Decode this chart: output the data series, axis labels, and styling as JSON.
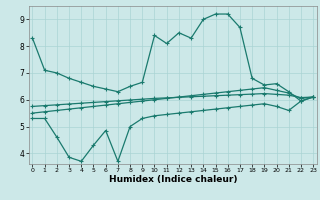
{
  "xlabel": "Humidex (Indice chaleur)",
  "bg_color": "#cce8e8",
  "line_color": "#1a7a6e",
  "grid_color": "#aad4d4",
  "x_ticks": [
    0,
    1,
    2,
    3,
    4,
    5,
    6,
    7,
    8,
    9,
    10,
    11,
    12,
    13,
    14,
    15,
    16,
    17,
    18,
    19,
    20,
    21,
    22,
    23
  ],
  "y_ticks": [
    4,
    5,
    6,
    7,
    8,
    9
  ],
  "xlim": [
    -0.3,
    23.3
  ],
  "ylim": [
    3.6,
    9.5
  ],
  "line1_y": [
    8.3,
    7.1,
    7.0,
    6.8,
    6.65,
    6.5,
    6.4,
    6.3,
    6.5,
    6.65,
    8.4,
    8.1,
    8.5,
    8.3,
    9.0,
    9.2,
    9.2,
    8.7,
    6.8,
    6.55,
    6.6,
    6.3,
    5.95,
    6.1
  ],
  "line2_y": [
    5.3,
    5.3,
    4.6,
    3.85,
    3.7,
    4.3,
    4.85,
    3.7,
    5.0,
    5.3,
    5.4,
    5.45,
    5.5,
    5.55,
    5.6,
    5.65,
    5.7,
    5.75,
    5.8,
    5.85,
    5.75,
    5.6,
    5.95,
    6.1
  ],
  "line3_y": [
    5.5,
    5.55,
    5.6,
    5.65,
    5.7,
    5.75,
    5.8,
    5.85,
    5.9,
    5.95,
    6.0,
    6.05,
    6.1,
    6.15,
    6.2,
    6.25,
    6.3,
    6.35,
    6.4,
    6.45,
    6.35,
    6.25,
    6.05,
    6.1
  ],
  "line4_y": [
    5.75,
    5.78,
    5.81,
    5.84,
    5.87,
    5.9,
    5.93,
    5.96,
    5.99,
    6.02,
    6.05,
    6.07,
    6.09,
    6.11,
    6.13,
    6.15,
    6.17,
    6.19,
    6.21,
    6.23,
    6.2,
    6.17,
    6.08,
    6.1
  ]
}
